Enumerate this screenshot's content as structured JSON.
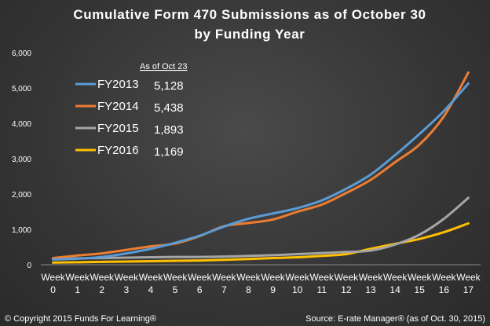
{
  "chart_data": {
    "type": "line",
    "title_line1": "Cumulative Form 470 Submissions as of October 30",
    "title_line2": "by Funding Year",
    "x_categories": [
      [
        "Week",
        "0"
      ],
      [
        "Week",
        "1"
      ],
      [
        "Week",
        "2"
      ],
      [
        "Week",
        "3"
      ],
      [
        "Week",
        "4"
      ],
      [
        "Week",
        "5"
      ],
      [
        "Week",
        "6"
      ],
      [
        "Week",
        "7"
      ],
      [
        "Week",
        "8"
      ],
      [
        "Week",
        "9"
      ],
      [
        "Week",
        "10"
      ],
      [
        "Week",
        "11"
      ],
      [
        "Week",
        "12"
      ],
      [
        "Week",
        "13"
      ],
      [
        "Week",
        "14"
      ],
      [
        "Week",
        "15"
      ],
      [
        "Week",
        "16"
      ],
      [
        "Week",
        "17"
      ]
    ],
    "ylim": [
      0,
      6000
    ],
    "y_ticks": [
      "0",
      "1,000",
      "2,000",
      "3,000",
      "4,000",
      "5,000",
      "6,000"
    ],
    "y_tick_values": [
      0,
      1000,
      2000,
      3000,
      4000,
      5000,
      6000
    ],
    "grid": false,
    "legend_header": "As of Oct 23",
    "legend_placement": "top-left",
    "series": [
      {
        "name": "FY2013",
        "legend_value": "5,128",
        "color": "#5b9bd5",
        "values": [
          150,
          170,
          220,
          320,
          450,
          620,
          820,
          1080,
          1300,
          1450,
          1600,
          1820,
          2150,
          2550,
          3100,
          3700,
          4350,
          5128
        ]
      },
      {
        "name": "FY2014",
        "legend_value": "5,438",
        "color": "#ed7d31",
        "values": [
          190,
          260,
          320,
          420,
          520,
          600,
          810,
          1090,
          1180,
          1280,
          1500,
          1700,
          2030,
          2400,
          2900,
          3400,
          4200,
          5438
        ]
      },
      {
        "name": "FY2015",
        "legend_value": "1,893",
        "color": "#a5a5a5",
        "values": [
          160,
          180,
          190,
          200,
          210,
          220,
          220,
          230,
          250,
          270,
          300,
          330,
          360,
          400,
          570,
          850,
          1300,
          1893
        ]
      },
      {
        "name": "FY2016",
        "legend_value": "1,169",
        "color": "#ffc000",
        "values": [
          60,
          70,
          80,
          90,
          100,
          110,
          120,
          140,
          160,
          190,
          210,
          250,
          300,
          450,
          590,
          730,
          920,
          1169
        ]
      }
    ]
  },
  "footer": {
    "copyright": "© Copyright 2015 Funds For Learning®",
    "source": "Source: E-rate Manager® (as of Oct. 30, 2015)"
  }
}
